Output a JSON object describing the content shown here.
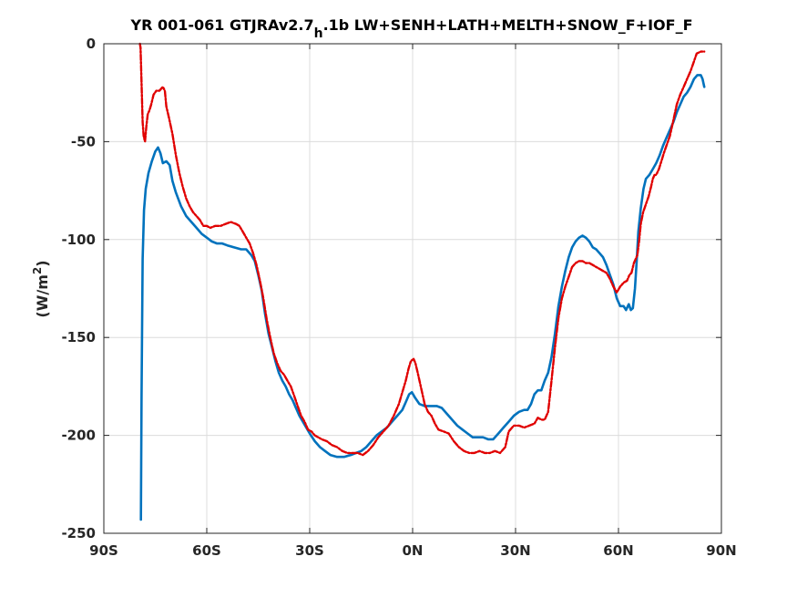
{
  "chart_data": {
    "type": "line",
    "title": {
      "prefix": "YR 001-061 GTJRAv2.7",
      "subscript": "h",
      "suffix": ".1b LW+SENH+LATH+MELTH+SNOW_F+IOF_F"
    },
    "xlabel": "",
    "ylabel": {
      "main": "(W/m",
      "superscript": "2",
      "close": ")"
    },
    "xlim": [
      -90,
      90
    ],
    "ylim": [
      -250,
      0
    ],
    "xticks": [
      {
        "value": -90,
        "label": "90S"
      },
      {
        "value": -60,
        "label": "60S"
      },
      {
        "value": -30,
        "label": "30S"
      },
      {
        "value": 0,
        "label": "0N"
      },
      {
        "value": 30,
        "label": "30N"
      },
      {
        "value": 60,
        "label": "60N"
      },
      {
        "value": 90,
        "label": "90N"
      }
    ],
    "yticks": [
      {
        "value": 0,
        "label": "0"
      },
      {
        "value": -50,
        "label": "-50"
      },
      {
        "value": -100,
        "label": "-100"
      },
      {
        "value": -150,
        "label": "-150"
      },
      {
        "value": -200,
        "label": "-200"
      },
      {
        "value": -250,
        "label": "-250"
      }
    ],
    "grid": true,
    "series": [
      {
        "color": "#0072BD",
        "style": "solid",
        "points": [
          [
            -79.2,
            -243
          ],
          [
            -79.0,
            -180
          ],
          [
            -78.7,
            -110
          ],
          [
            -78.3,
            -85
          ],
          [
            -77.8,
            -74
          ],
          [
            -77.0,
            -66
          ],
          [
            -76.0,
            -60
          ],
          [
            -75.0,
            -55
          ],
          [
            -74.2,
            -53
          ],
          [
            -73.5,
            -56
          ],
          [
            -72.8,
            -61
          ],
          [
            -71.8,
            -60
          ],
          [
            -70.8,
            -62
          ],
          [
            -70.0,
            -70
          ],
          [
            -69.0,
            -76
          ],
          [
            -67.5,
            -83
          ],
          [
            -66.0,
            -88
          ],
          [
            -64.5,
            -91
          ],
          [
            -63.0,
            -94
          ],
          [
            -61.5,
            -97
          ],
          [
            -60.0,
            -99
          ],
          [
            -58.5,
            -101
          ],
          [
            -57.0,
            -102
          ],
          [
            -55.5,
            -102
          ],
          [
            -54.0,
            -103
          ],
          [
            -52.0,
            -104
          ],
          [
            -50.0,
            -105
          ],
          [
            -48.5,
            -105
          ],
          [
            -47.0,
            -108
          ],
          [
            -46.0,
            -111
          ],
          [
            -45.0,
            -118
          ],
          [
            -44.0,
            -126
          ],
          [
            -43.0,
            -138
          ],
          [
            -42.0,
            -148
          ],
          [
            -41.0,
            -155
          ],
          [
            -40.0,
            -162
          ],
          [
            -39.0,
            -168
          ],
          [
            -38.0,
            -172
          ],
          [
            -37.0,
            -175
          ],
          [
            -36.0,
            -179
          ],
          [
            -35.0,
            -182
          ],
          [
            -34.0,
            -186
          ],
          [
            -33.0,
            -190
          ],
          [
            -32.0,
            -193
          ],
          [
            -31.0,
            -196
          ],
          [
            -30.0,
            -199
          ],
          [
            -28.5,
            -203
          ],
          [
            -27.0,
            -206
          ],
          [
            -25.5,
            -208
          ],
          [
            -24.0,
            -210
          ],
          [
            -22.0,
            -211
          ],
          [
            -20.0,
            -211
          ],
          [
            -18.0,
            -210
          ],
          [
            -16.5,
            -209
          ],
          [
            -15.0,
            -208
          ],
          [
            -13.5,
            -206
          ],
          [
            -12.0,
            -203
          ],
          [
            -10.5,
            -200
          ],
          [
            -9.0,
            -198
          ],
          [
            -7.5,
            -196
          ],
          [
            -6.0,
            -193
          ],
          [
            -4.5,
            -190
          ],
          [
            -3.0,
            -187
          ],
          [
            -2.0,
            -183
          ],
          [
            -1.0,
            -179
          ],
          [
            -0.2,
            -178
          ],
          [
            0.8,
            -181
          ],
          [
            2.0,
            -184
          ],
          [
            3.5,
            -185
          ],
          [
            5.0,
            -185
          ],
          [
            7.0,
            -185
          ],
          [
            8.5,
            -186
          ],
          [
            10.0,
            -189
          ],
          [
            11.5,
            -192
          ],
          [
            13.0,
            -195
          ],
          [
            14.5,
            -197
          ],
          [
            16.0,
            -199
          ],
          [
            17.5,
            -201
          ],
          [
            19.0,
            -201
          ],
          [
            20.5,
            -201
          ],
          [
            22.0,
            -202
          ],
          [
            23.5,
            -202
          ],
          [
            25.0,
            -199
          ],
          [
            26.5,
            -196
          ],
          [
            28.0,
            -193
          ],
          [
            29.5,
            -190
          ],
          [
            31.0,
            -188
          ],
          [
            32.5,
            -187
          ],
          [
            33.5,
            -187
          ],
          [
            34.5,
            -184
          ],
          [
            35.5,
            -179
          ],
          [
            36.5,
            -177
          ],
          [
            37.5,
            -177
          ],
          [
            38.5,
            -172
          ],
          [
            39.5,
            -168
          ],
          [
            40.5,
            -160
          ],
          [
            41.5,
            -148
          ],
          [
            42.5,
            -134
          ],
          [
            43.5,
            -124
          ],
          [
            44.5,
            -116
          ],
          [
            45.5,
            -109
          ],
          [
            46.5,
            -104
          ],
          [
            47.5,
            -101
          ],
          [
            48.5,
            -99
          ],
          [
            49.5,
            -98
          ],
          [
            50.5,
            -99
          ],
          [
            51.5,
            -101
          ],
          [
            52.5,
            -104
          ],
          [
            53.5,
            -105
          ],
          [
            54.5,
            -107
          ],
          [
            55.5,
            -109
          ],
          [
            56.5,
            -113
          ],
          [
            57.5,
            -118
          ],
          [
            58.5,
            -123
          ],
          [
            59.5,
            -130
          ],
          [
            60.5,
            -134
          ],
          [
            61.5,
            -134
          ],
          [
            62.2,
            -136
          ],
          [
            63.0,
            -133
          ],
          [
            63.6,
            -136
          ],
          [
            64.2,
            -135
          ],
          [
            64.8,
            -125
          ],
          [
            65.3,
            -111
          ],
          [
            65.8,
            -96
          ],
          [
            66.5,
            -84
          ],
          [
            67.3,
            -74
          ],
          [
            68.0,
            -69
          ],
          [
            69.0,
            -67
          ],
          [
            70.0,
            -64
          ],
          [
            71.0,
            -61
          ],
          [
            72.0,
            -57
          ],
          [
            73.0,
            -52
          ],
          [
            74.0,
            -48
          ],
          [
            75.0,
            -44
          ],
          [
            76.0,
            -40
          ],
          [
            77.0,
            -35
          ],
          [
            78.0,
            -31
          ],
          [
            79.0,
            -27
          ],
          [
            80.0,
            -25
          ],
          [
            81.0,
            -22
          ],
          [
            82.0,
            -18
          ],
          [
            83.0,
            -16
          ],
          [
            84.0,
            -16
          ],
          [
            84.5,
            -18
          ],
          [
            85.0,
            -22
          ]
        ]
      },
      {
        "color": "#E00000",
        "style": "dashed",
        "points": [
          [
            -79.5,
            0
          ],
          [
            -79.3,
            -2
          ],
          [
            -79.0,
            -20
          ],
          [
            -78.7,
            -40
          ],
          [
            -78.4,
            -47
          ],
          [
            -78.0,
            -50
          ],
          [
            -77.6,
            -42
          ],
          [
            -77.2,
            -36
          ],
          [
            -76.7,
            -34
          ],
          [
            -76.2,
            -31
          ],
          [
            -75.5,
            -26
          ],
          [
            -74.7,
            -24
          ],
          [
            -73.8,
            -24
          ],
          [
            -72.8,
            -22
          ],
          [
            -72.2,
            -24
          ],
          [
            -71.8,
            -32
          ],
          [
            -71.0,
            -38
          ],
          [
            -70.0,
            -46
          ],
          [
            -69.0,
            -57
          ],
          [
            -68.0,
            -66
          ],
          [
            -67.0,
            -73
          ],
          [
            -66.0,
            -79
          ],
          [
            -65.0,
            -83
          ],
          [
            -64.0,
            -86
          ],
          [
            -63.0,
            -88
          ],
          [
            -62.0,
            -90
          ],
          [
            -61.0,
            -93
          ],
          [
            -60.0,
            -93
          ],
          [
            -59.0,
            -94
          ],
          [
            -57.5,
            -93
          ],
          [
            -56.0,
            -93
          ],
          [
            -54.5,
            -92
          ],
          [
            -53.0,
            -91
          ],
          [
            -51.5,
            -92
          ],
          [
            -50.5,
            -93
          ],
          [
            -49.5,
            -96
          ],
          [
            -48.5,
            -99
          ],
          [
            -47.5,
            -102
          ],
          [
            -46.5,
            -107
          ],
          [
            -45.5,
            -113
          ],
          [
            -44.5,
            -121
          ],
          [
            -43.5,
            -130
          ],
          [
            -42.5,
            -141
          ],
          [
            -41.5,
            -150
          ],
          [
            -40.5,
            -158
          ],
          [
            -39.5,
            -163
          ],
          [
            -38.5,
            -167
          ],
          [
            -37.5,
            -169
          ],
          [
            -36.5,
            -172
          ],
          [
            -35.5,
            -175
          ],
          [
            -34.5,
            -180
          ],
          [
            -33.5,
            -185
          ],
          [
            -32.5,
            -190
          ],
          [
            -31.5,
            -193
          ],
          [
            -30.5,
            -197
          ],
          [
            -29.5,
            -198
          ],
          [
            -28.5,
            -200
          ],
          [
            -27.5,
            -201
          ],
          [
            -26.5,
            -202
          ],
          [
            -25.0,
            -203
          ],
          [
            -23.5,
            -205
          ],
          [
            -22.0,
            -206
          ],
          [
            -20.5,
            -208
          ],
          [
            -19.0,
            -209
          ],
          [
            -17.5,
            -209
          ],
          [
            -16.0,
            -209
          ],
          [
            -14.5,
            -210
          ],
          [
            -13.0,
            -208
          ],
          [
            -11.5,
            -205
          ],
          [
            -10.0,
            -201
          ],
          [
            -8.5,
            -198
          ],
          [
            -7.0,
            -195
          ],
          [
            -5.5,
            -190
          ],
          [
            -4.0,
            -184
          ],
          [
            -3.0,
            -178
          ],
          [
            -2.0,
            -172
          ],
          [
            -1.2,
            -166
          ],
          [
            -0.5,
            -162
          ],
          [
            0.3,
            -161
          ],
          [
            0.8,
            -163
          ],
          [
            1.5,
            -168
          ],
          [
            2.5,
            -176
          ],
          [
            3.5,
            -184
          ],
          [
            4.5,
            -188
          ],
          [
            5.5,
            -190
          ],
          [
            6.5,
            -194
          ],
          [
            7.5,
            -197
          ],
          [
            9.0,
            -198
          ],
          [
            10.5,
            -199
          ],
          [
            12.0,
            -203
          ],
          [
            13.5,
            -206
          ],
          [
            15.0,
            -208
          ],
          [
            16.5,
            -209
          ],
          [
            18.0,
            -209
          ],
          [
            19.5,
            -208
          ],
          [
            21.0,
            -209
          ],
          [
            22.5,
            -209
          ],
          [
            24.0,
            -208
          ],
          [
            25.5,
            -209
          ],
          [
            27.0,
            -206
          ],
          [
            28.0,
            -198
          ],
          [
            29.5,
            -195
          ],
          [
            31.0,
            -195
          ],
          [
            32.5,
            -196
          ],
          [
            34.0,
            -195
          ],
          [
            35.5,
            -194
          ],
          [
            36.5,
            -191
          ],
          [
            37.5,
            -192
          ],
          [
            38.5,
            -192
          ],
          [
            39.5,
            -188
          ],
          [
            40.5,
            -172
          ],
          [
            41.5,
            -155
          ],
          [
            42.5,
            -140
          ],
          [
            43.5,
            -130
          ],
          [
            44.5,
            -124
          ],
          [
            45.5,
            -119
          ],
          [
            46.5,
            -114
          ],
          [
            47.5,
            -112
          ],
          [
            48.5,
            -111
          ],
          [
            49.5,
            -111
          ],
          [
            50.5,
            -112
          ],
          [
            51.5,
            -112
          ],
          [
            52.5,
            -113
          ],
          [
            53.5,
            -114
          ],
          [
            54.5,
            -115
          ],
          [
            55.5,
            -116
          ],
          [
            56.5,
            -117
          ],
          [
            57.5,
            -120
          ],
          [
            58.5,
            -124
          ],
          [
            59.5,
            -127
          ],
          [
            60.5,
            -124
          ],
          [
            61.5,
            -122
          ],
          [
            62.5,
            -121
          ],
          [
            63.2,
            -118
          ],
          [
            63.8,
            -117
          ],
          [
            64.5,
            -112
          ],
          [
            65.0,
            -110
          ],
          [
            65.5,
            -108
          ],
          [
            66.0,
            -101
          ],
          [
            66.5,
            -92
          ],
          [
            67.2,
            -86
          ],
          [
            68.0,
            -82
          ],
          [
            68.8,
            -78
          ],
          [
            69.5,
            -73
          ],
          [
            70.0,
            -69
          ],
          [
            70.5,
            -67
          ],
          [
            71.0,
            -67
          ],
          [
            71.8,
            -64
          ],
          [
            72.5,
            -60
          ],
          [
            73.2,
            -56
          ],
          [
            74.0,
            -52
          ],
          [
            75.0,
            -47
          ],
          [
            76.0,
            -39
          ],
          [
            77.0,
            -31
          ],
          [
            78.0,
            -26
          ],
          [
            79.0,
            -22
          ],
          [
            80.0,
            -18
          ],
          [
            81.0,
            -14
          ],
          [
            82.0,
            -9
          ],
          [
            82.8,
            -5
          ],
          [
            84.0,
            -4
          ],
          [
            85.0,
            -4
          ]
        ]
      }
    ]
  }
}
